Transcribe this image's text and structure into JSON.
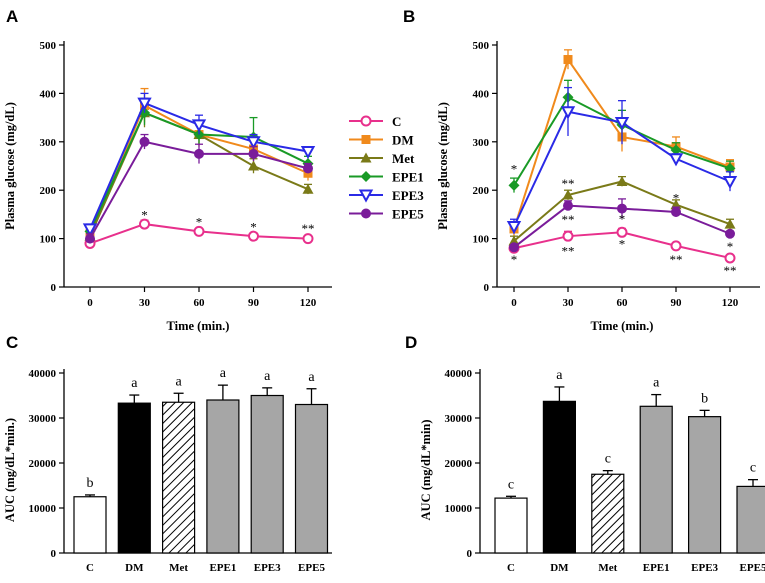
{
  "panels": [
    {
      "label": "A",
      "chart_data": {
        "type": "line",
        "xlabel": "Time (min.)",
        "ylabel": "Plasma glucose (mg/dL)",
        "x": [
          0,
          30,
          60,
          90,
          120
        ],
        "xticks": [
          "0",
          "30",
          "60",
          "90",
          "120"
        ],
        "ylim": [
          0,
          500
        ],
        "yticks": [
          "0",
          "100",
          "200",
          "300",
          "400",
          "500"
        ],
        "series": [
          {
            "name": "C",
            "values": [
              90,
              130,
              115,
              105,
              100
            ],
            "err": [
              5,
              8,
              5,
              5,
              5
            ]
          },
          {
            "name": "DM",
            "values": [
              110,
              375,
              315,
              285,
              235
            ],
            "err": [
              10,
              35,
              25,
              20,
              15
            ]
          },
          {
            "name": "Met",
            "values": [
              105,
              360,
              315,
              250,
              202
            ],
            "err": [
              10,
              30,
              20,
              15,
              10
            ]
          },
          {
            "name": "EPE1",
            "values": [
              115,
              360,
              315,
              310,
              255
            ],
            "err": [
              10,
              25,
              20,
              40,
              15
            ]
          },
          {
            "name": "EPE3",
            "values": [
              120,
              380,
              335,
              300,
              280
            ],
            "err": [
              10,
              20,
              20,
              15,
              10
            ]
          },
          {
            "name": "EPE5",
            "values": [
              100,
              300,
              275,
              275,
              245
            ],
            "err": [
              10,
              15,
              20,
              15,
              10
            ]
          }
        ],
        "annotations": [
          {
            "x": 30,
            "y": 150,
            "text": "*"
          },
          {
            "x": 60,
            "y": 135,
            "text": "*"
          },
          {
            "x": 90,
            "y": 125,
            "text": "*"
          },
          {
            "x": 120,
            "y": 122,
            "text": "**"
          }
        ]
      }
    },
    {
      "label": "B",
      "chart_data": {
        "type": "line",
        "xlabel": "Time (min.)",
        "ylabel": "Plasma glucose (mg/dL)",
        "x": [
          0,
          30,
          60,
          90,
          120
        ],
        "xticks": [
          "0",
          "30",
          "60",
          "90",
          "120"
        ],
        "ylim": [
          0,
          500
        ],
        "yticks": [
          "0",
          "100",
          "200",
          "300",
          "400",
          "500"
        ],
        "series": [
          {
            "name": "C",
            "values": [
              80,
              105,
              113,
              85,
              60
            ],
            "err": [
              5,
              10,
              8,
              5,
              5
            ]
          },
          {
            "name": "DM",
            "values": [
              120,
              470,
              310,
              290,
              248
            ],
            "err": [
              15,
              20,
              30,
              20,
              15
            ]
          },
          {
            "name": "Met",
            "values": [
              95,
              190,
              218,
              170,
              130
            ],
            "err": [
              10,
              10,
              10,
              10,
              10
            ]
          },
          {
            "name": "EPE1",
            "values": [
              210,
              392,
              335,
              283,
              245
            ],
            "err": [
              15,
              35,
              30,
              15,
              15
            ]
          },
          {
            "name": "EPE3",
            "values": [
              125,
              362,
              340,
              265,
              218
            ],
            "err": [
              15,
              50,
              45,
              10,
              20
            ]
          },
          {
            "name": "EPE5",
            "values": [
              82,
              168,
              162,
              155,
              110
            ],
            "err": [
              5,
              10,
              20,
              10,
              5
            ]
          }
        ],
        "annotations": [
          {
            "x": 0,
            "y": 245,
            "text": "*"
          },
          {
            "x": 0,
            "y": 58,
            "text": "*"
          },
          {
            "x": 30,
            "y": 215,
            "text": "**"
          },
          {
            "x": 30,
            "y": 140,
            "text": "**"
          },
          {
            "x": 30,
            "y": 75,
            "text": "**"
          },
          {
            "x": 60,
            "y": 142,
            "text": "*"
          },
          {
            "x": 60,
            "y": 90,
            "text": "*"
          },
          {
            "x": 90,
            "y": 185,
            "text": "*"
          },
          {
            "x": 90,
            "y": 58,
            "text": "**"
          },
          {
            "x": 120,
            "y": 85,
            "text": "*"
          },
          {
            "x": 120,
            "y": 35,
            "text": "**"
          }
        ]
      }
    },
    {
      "label": "C",
      "chart_data": {
        "type": "bar",
        "ylabel": "AUC (mg/dL*min.)",
        "categories": [
          "C",
          "DM",
          "Met",
          "EPE1",
          "EPE3",
          "EPE5"
        ],
        "values": [
          12500,
          33300,
          33500,
          34000,
          35000,
          33000
        ],
        "err": [
          400,
          1800,
          2000,
          3300,
          1700,
          3500
        ],
        "letters": [
          "b",
          "a",
          "a",
          "a",
          "a",
          "a"
        ],
        "ylim": [
          0,
          40000
        ],
        "yticks": [
          "0",
          "10000",
          "20000",
          "30000",
          "40000"
        ]
      }
    },
    {
      "label": "D",
      "chart_data": {
        "type": "bar",
        "ylabel": "AUC (mg/dL*min)",
        "categories": [
          "C",
          "DM",
          "Met",
          "EPE1",
          "EPE3",
          "EPE5"
        ],
        "values": [
          12200,
          33700,
          17500,
          32600,
          30300,
          14800
        ],
        "err": [
          400,
          3200,
          800,
          2600,
          1400,
          1500
        ],
        "letters": [
          "c",
          "a",
          "c",
          "a",
          "b",
          "c"
        ],
        "ylim": [
          0,
          40000
        ],
        "yticks": [
          "0",
          "10000",
          "20000",
          "30000",
          "40000"
        ]
      }
    }
  ],
  "legend": [
    {
      "name": "C",
      "color": "#e8308c",
      "marker": "circle"
    },
    {
      "name": "DM",
      "color": "#f08a1c",
      "marker": "square"
    },
    {
      "name": "Met",
      "color": "#7a7a18",
      "marker": "triangle-up"
    },
    {
      "name": "EPE1",
      "color": "#199a26",
      "marker": "diamond"
    },
    {
      "name": "EPE3",
      "color": "#2a2ae6",
      "marker": "triangle-down"
    },
    {
      "name": "EPE5",
      "color": "#7a1c9a",
      "marker": "circle-filled"
    }
  ],
  "bar_styles": [
    {
      "fill": "#ffffff",
      "pattern": "none"
    },
    {
      "fill": "#000000",
      "pattern": "none"
    },
    {
      "fill": "#ffffff",
      "pattern": "hatch"
    },
    {
      "fill": "#a6a6a6",
      "pattern": "none"
    },
    {
      "fill": "#a6a6a6",
      "pattern": "none"
    },
    {
      "fill": "#a6a6a6",
      "pattern": "none"
    }
  ]
}
